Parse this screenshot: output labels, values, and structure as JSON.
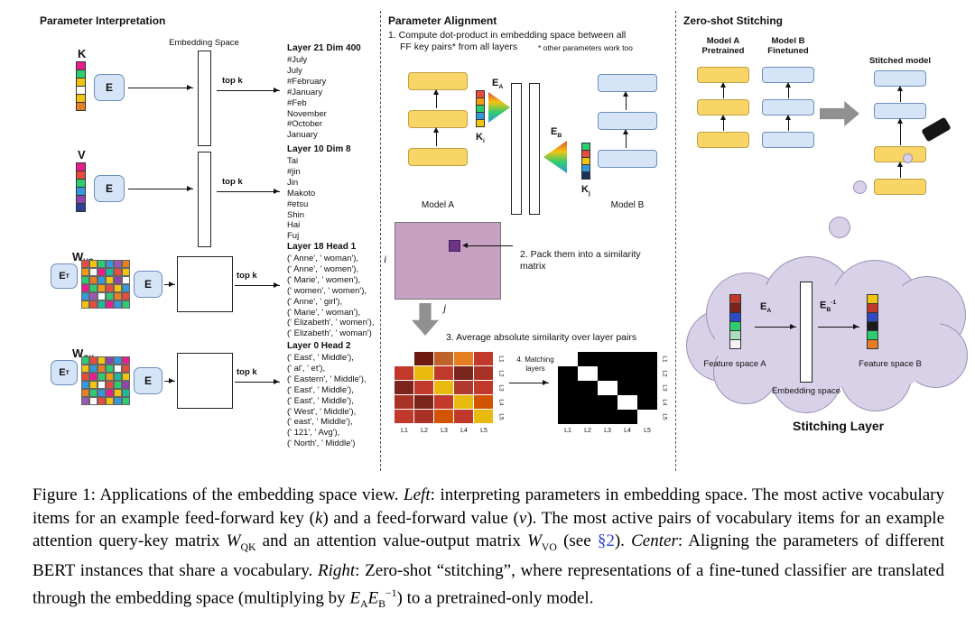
{
  "colors": {
    "model_a_fill": "#F8D566",
    "model_a_border": "#BFA043",
    "model_b_fill": "#D6E4F7",
    "model_b_border": "#6C8EBF",
    "sim_matrix_fill": "#C7A0C2",
    "sim_matrix_inner": "#6C3483",
    "cloud_fill": "#D8D1E8",
    "cloud_border": "#9A92B8",
    "arrow_gray": "#909090",
    "link": "#3344CC"
  },
  "left": {
    "title": "Parameter Interpretation",
    "embedding_space_label": "Embedding Space",
    "topk_label": "top k",
    "e_label": "E",
    "et_main": "E",
    "et_sup": "T",
    "k": {
      "label": "K",
      "vector_colors": [
        "#E91E8C",
        "#2ECC71",
        "#F1C40F",
        "#FFFFFF",
        "#F1C40F",
        "#E67E22"
      ],
      "list_title": "Layer 21 Dim 400",
      "items": [
        "#July",
        "July",
        "#February",
        "#January",
        "#Feb",
        "November",
        "#October",
        "January"
      ]
    },
    "v": {
      "label": "V",
      "vector_colors": [
        "#E91E8C",
        "#E74C3C",
        "#2ECC71",
        "#3498DB",
        "#8E44AD",
        "#2C3E99"
      ],
      "list_title": "Layer 10 Dim 8",
      "items": [
        "Tai",
        "#jin",
        "Jin",
        "Makoto",
        "#etsu",
        "Shin",
        "Hai",
        "Fuj"
      ]
    },
    "wvo": {
      "label_main": "W",
      "label_sub": "VO",
      "matrix_colors": [
        [
          "#E74C3C",
          "#F1C40F",
          "#2ECC71",
          "#3498DB",
          "#9B59B6",
          "#E67E22"
        ],
        [
          "#F39C12",
          "#FFFFFF",
          "#E91E8C",
          "#1ABC9C",
          "#E74C3C",
          "#F1C40F"
        ],
        [
          "#2ECC71",
          "#E67E22",
          "#3498DB",
          "#F1C40F",
          "#8E44AD",
          "#FFFFFF"
        ],
        [
          "#E91E8C",
          "#2ECC71",
          "#F39C12",
          "#E74C3C",
          "#F1C40F",
          "#3498DB"
        ],
        [
          "#3498DB",
          "#9B59B6",
          "#FFFFFF",
          "#2ECC71",
          "#E67E22",
          "#E74C3C"
        ],
        [
          "#F1C40F",
          "#E74C3C",
          "#1ABC9C",
          "#E91E8C",
          "#3498DB",
          "#2ECC71"
        ]
      ],
      "list_title": "Layer 18 Head 1",
      "items": [
        "(' Anne', ' woman'),",
        "(' Anne', ' women'),",
        "(' Marie', ' women'),",
        "(' women', ' women'),",
        "(' Anne', ' girl'),",
        "(' Marie', ' woman'),",
        "(' Elizabeth', ' women'),",
        "(' Elizabeth', ' woman')"
      ]
    },
    "wqk": {
      "label_main": "W",
      "label_sub": "QK",
      "matrix_colors": [
        [
          "#2ECC71",
          "#E74C3C",
          "#F1C40F",
          "#8E44AD",
          "#3498DB",
          "#E91E8C"
        ],
        [
          "#F1C40F",
          "#3498DB",
          "#E67E22",
          "#2ECC71",
          "#FFFFFF",
          "#E74C3C"
        ],
        [
          "#E74C3C",
          "#E91E8C",
          "#2ECC71",
          "#F39C12",
          "#1ABC9C",
          "#F1C40F"
        ],
        [
          "#3498DB",
          "#F1C40F",
          "#FFFFFF",
          "#E74C3C",
          "#2ECC71",
          "#8E44AD"
        ],
        [
          "#E67E22",
          "#2ECC71",
          "#3498DB",
          "#E91E8C",
          "#F1C40F",
          "#1ABC9C"
        ],
        [
          "#9B59B6",
          "#FFFFFF",
          "#E74C3C",
          "#F1C40F",
          "#3498DB",
          "#2ECC71"
        ]
      ],
      "list_title": "Layer 0 Head 2",
      "items": [
        "(' East', ' Middle'),",
        "(' al', ' et'),",
        "(' Eastern', ' Middle'),",
        "(' East', ' Middle'),",
        "(' East', ' Middle'),",
        "(' West', ' Middle'),",
        "(' east', ' Middle'),",
        "(' 121', ' Avg'),",
        "(' North', ' Middle')"
      ]
    }
  },
  "center": {
    "title": "Parameter Alignment",
    "step1_line1": "1. Compute dot-product in embedding space between all",
    "step1_line2": "FF key pairs* from all layers",
    "step1_note": "* other parameters work too",
    "model_a_label": "Model A",
    "model_b_label": "Model B",
    "ea_main": "E",
    "ea_sub": "A",
    "eb_main": "E",
    "eb_sub": "B",
    "ki_main": "K",
    "ki_sub": "i",
    "kj_main": "K",
    "kj_sub": "j",
    "ki_colors": [
      "#E74C3C",
      "#F39C12",
      "#2ECC71",
      "#3498DB",
      "#F1C40F"
    ],
    "kj_colors": [
      "#2ECC71",
      "#E74C3C",
      "#F1C40F",
      "#3498DB",
      "#16325C"
    ],
    "fan_colors": [
      "#E74C3C",
      "#F1C40F",
      "#2ECC71",
      "#3498DB"
    ],
    "i_label": "i",
    "j_label": "j",
    "step2_line1": "2. Pack them into a similarity",
    "step2_line2": "matrix",
    "step3": "3. Average absolute similarity over layer pairs",
    "step4": "4. Matching layers",
    "heatmap": {
      "colors": [
        [
          "#FFFFFF",
          "#6E1A10",
          "#C0622B",
          "#E67E22",
          "#C0392B"
        ],
        [
          "#C0392B",
          "#E8B90F",
          "#C0392B",
          "#7B241C",
          "#A93226"
        ],
        [
          "#7B241C",
          "#C0392B",
          "#E8B90F",
          "#B03A2E",
          "#C0392B"
        ],
        [
          "#A93226",
          "#7B241C",
          "#C0392B",
          "#E8B90F",
          "#D35400"
        ],
        [
          "#C0392B",
          "#A93226",
          "#D35400",
          "#C0392B",
          "#E8B90F"
        ]
      ],
      "row_labels": [
        "L1",
        "L2",
        "L3",
        "L4",
        "L5"
      ],
      "col_labels": [
        "L1",
        "L2",
        "L3",
        "L4",
        "L5"
      ]
    },
    "matching": {
      "colors": [
        [
          "#FFFFFF",
          "#000000",
          "#000000",
          "#000000",
          "#000000"
        ],
        [
          "#000000",
          "#FFFFFF",
          "#000000",
          "#000000",
          "#000000"
        ],
        [
          "#000000",
          "#000000",
          "#FFFFFF",
          "#000000",
          "#000000"
        ],
        [
          "#000000",
          "#000000",
          "#000000",
          "#FFFFFF",
          "#000000"
        ],
        [
          "#000000",
          "#000000",
          "#000000",
          "#000000",
          "#FFFFFF"
        ]
      ],
      "row_labels": [
        "L1",
        "L2",
        "L3",
        "L4",
        "L5"
      ],
      "col_labels": [
        "L1",
        "L2",
        "L3",
        "L4",
        "L5"
      ]
    }
  },
  "right": {
    "title": "Zero-shot Stitching",
    "model_a_line1": "Model A",
    "model_a_line2": "Pretrained",
    "model_b_line1": "Model B",
    "model_b_line2": "Finetuned",
    "stitched_label": "Stitched model",
    "cloud": {
      "ea_main": "E",
      "ea_sub": "A",
      "eb_main": "E",
      "eb_sub": "B",
      "eb_sup": "-1",
      "feature_a_label": "Feature space A",
      "embedding_label": "Embedding space",
      "feature_b_label": "Feature space B",
      "vector_a_colors": [
        "#C0392B",
        "#7B241C",
        "#2E4BC6",
        "#2ECC71",
        "#A9DFBF",
        "#F2F3F4"
      ],
      "vector_b_colors": [
        "#F1C40F",
        "#C0392B",
        "#2E4BC6",
        "#1B1B1B",
        "#2ECC71",
        "#E67E22"
      ]
    },
    "stitching_layer_label": "Stitching Layer"
  },
  "caption": {
    "segments": [
      {
        "t": "Figure 1: Applications of the embedding space view. ",
        "s": "n"
      },
      {
        "t": "Left",
        "s": "i"
      },
      {
        "t": ": interpreting parameters in embedding space. The most active vocabulary items for an example feed-forward key (",
        "s": "n"
      },
      {
        "t": "k",
        "s": "m"
      },
      {
        "t": ") and a feed-forward value (",
        "s": "n"
      },
      {
        "t": "v",
        "s": "m"
      },
      {
        "t": "). The most active pairs of vocabulary items for an example attention query-key matrix ",
        "s": "n"
      },
      {
        "t": "W",
        "s": "m"
      },
      {
        "t": "QK",
        "s": "sub"
      },
      {
        "t": " and an attention value-output matrix ",
        "s": "n"
      },
      {
        "t": "W",
        "s": "m"
      },
      {
        "t": "VO",
        "s": "sub"
      },
      {
        "t": " (see ",
        "s": "n"
      },
      {
        "t": "§2",
        "s": "link"
      },
      {
        "t": "). ",
        "s": "n"
      },
      {
        "t": "Center",
        "s": "i"
      },
      {
        "t": ": Aligning the parameters of different BERT instances that share a vocabulary. ",
        "s": "n"
      },
      {
        "t": "Right",
        "s": "i"
      },
      {
        "t": ": Zero-shot “stitching”, where representations of a fine-tuned classifier are translated through the embedding space (multiplying by ",
        "s": "n"
      },
      {
        "t": "E",
        "s": "m"
      },
      {
        "t": "A",
        "s": "sub"
      },
      {
        "t": "E",
        "s": "m"
      },
      {
        "t": "B",
        "s": "sub"
      },
      {
        "t": "−1",
        "s": "sup"
      },
      {
        "t": ") to a pretrained-only model.",
        "s": "n"
      }
    ]
  }
}
